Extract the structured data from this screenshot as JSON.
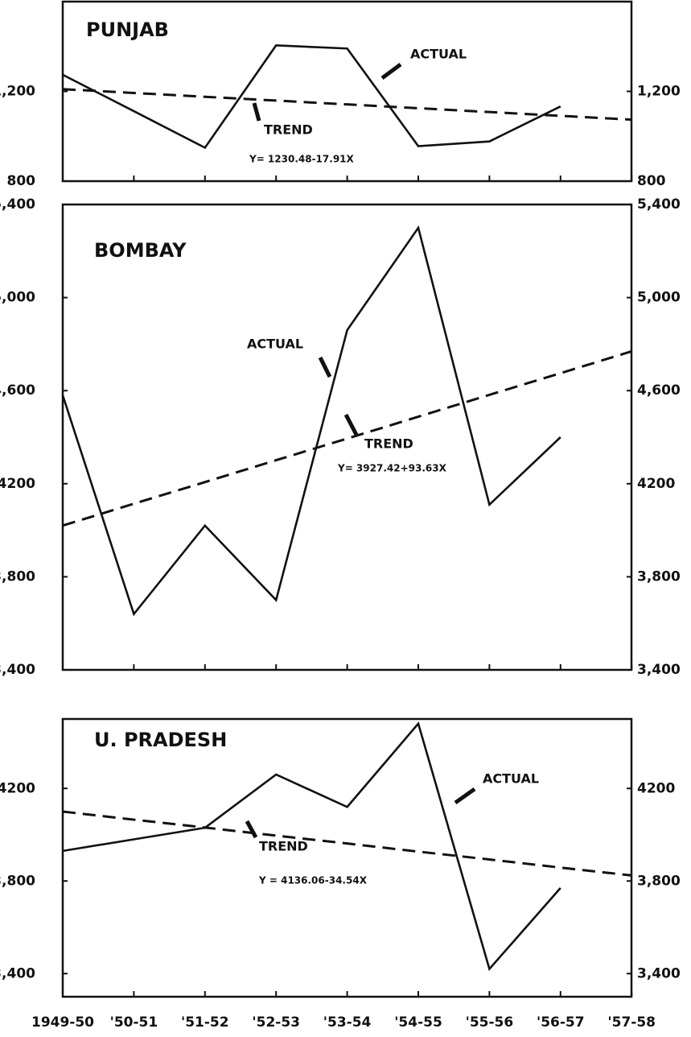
{
  "chart_data": [
    {
      "type": "line",
      "title": "PUNJAB",
      "equation": "Y= 1230.48-17.91X",
      "series": [
        {
          "name": "ACTUAL",
          "color": "#111111",
          "dash": false,
          "values": [
            1274,
            1112,
            949,
            1405,
            1391,
            956,
            977,
            1133,
            null
          ]
        },
        {
          "name": "TREND",
          "color": "#111111",
          "dash": true,
          "values": [
            1210,
            1193,
            1176,
            1159,
            1142,
            1125,
            1108,
            1091,
            1074
          ]
        }
      ],
      "ylim": [
        800,
        1600
      ],
      "yticks": [
        800,
        {
          "value": 1200,
          "label": "1,200"
        }
      ]
    },
    {
      "type": "line",
      "title": "BOMBAY",
      "equation": "Y= 3927.42+93.63X",
      "series": [
        {
          "name": "ACTUAL",
          "color": "#111111",
          "dash": false,
          "values": [
            4580,
            3640,
            4020,
            3700,
            4860,
            5300,
            4110,
            4400,
            null
          ]
        },
        {
          "name": "TREND",
          "color": "#111111",
          "dash": true,
          "values": [
            4020,
            4114,
            4207,
            4301,
            4394,
            4488,
            4582,
            4675,
            4769
          ]
        }
      ],
      "ylim": [
        3400,
        5400
      ],
      "yticks": [
        {
          "value": 3400,
          "label": "3,400"
        },
        {
          "value": 3800,
          "label": "3,800"
        },
        {
          "value": 4200,
          "label": "4200"
        },
        {
          "value": 4600,
          "label": "4,600"
        },
        {
          "value": 5000,
          "label": "5,000"
        },
        {
          "value": 5400,
          "label": "5,400"
        }
      ]
    },
    {
      "type": "line",
      "title": "U. PRADESH",
      "equation": "Y = 4136.06-34.54X",
      "categories": [
        "1949-50",
        "'50-51",
        "'51-52",
        "'52-53",
        "'53-54",
        "'54-55",
        "'55-56",
        "'56-57",
        "'57-58"
      ],
      "series": [
        {
          "name": "ACTUAL",
          "color": "#111111",
          "dash": false,
          "values": [
            3930,
            3980,
            4030,
            4260,
            4120,
            4480,
            3420,
            3770,
            null
          ]
        },
        {
          "name": "TREND",
          "color": "#111111",
          "dash": true,
          "values": [
            4100,
            4065,
            4031,
            3996,
            3962,
            3927,
            3893,
            3858,
            3824
          ]
        }
      ],
      "ylim": [
        3300,
        4500
      ],
      "yticks": [
        {
          "value": 3400,
          "label": "3,400"
        },
        {
          "value": 3800,
          "label": "3,800"
        },
        {
          "value": 4200,
          "label": "4200"
        }
      ]
    }
  ]
}
